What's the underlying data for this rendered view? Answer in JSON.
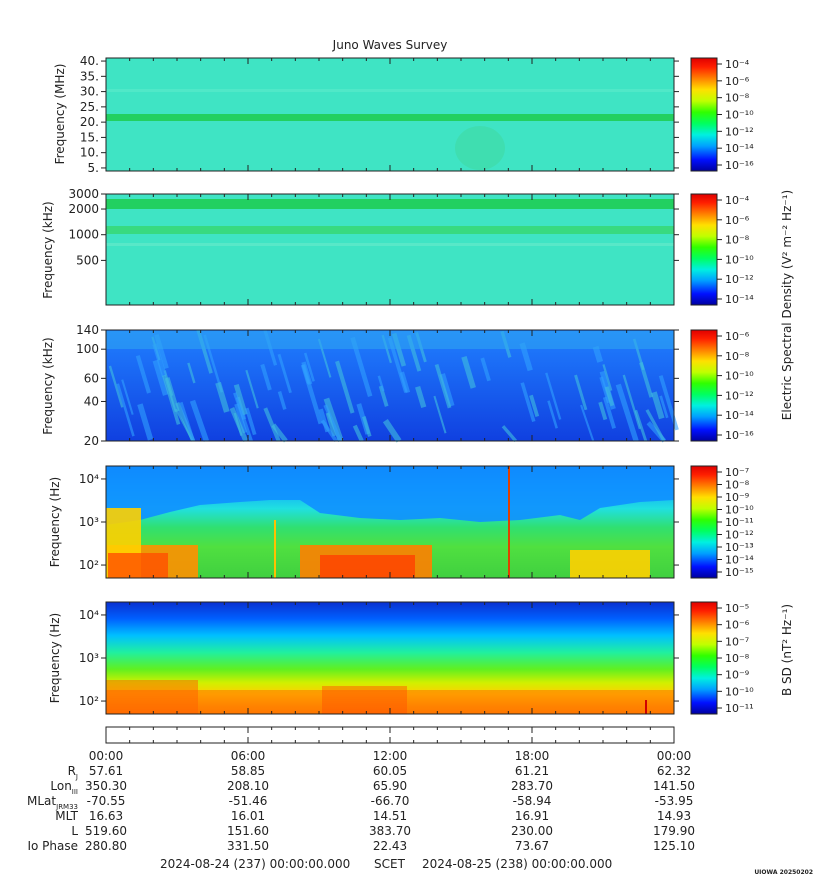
{
  "title": "Juno Waves Survey",
  "colors": {
    "background_teal": "#3fe0c0",
    "band_green": "#22d060",
    "low_blue": "#1050e8",
    "hot_red": "#ff3000",
    "warm_orange": "#ff9000",
    "axis": "#222222"
  },
  "colormap": [
    "#0000a0",
    "#0010ff",
    "#00a0ff",
    "#00f0e0",
    "#00ff60",
    "#30ff00",
    "#c0ff00",
    "#ffe000",
    "#ff8000",
    "#ff2000",
    "#e00000"
  ],
  "shared_colorbar_label": "Electric Spectral Density (V² m⁻² Hz⁻¹)",
  "bsd_colorbar_label": "B SD (nT² Hz⁻¹)",
  "chart_data": [
    {
      "type": "heatmap",
      "panel": "hfwbr-high",
      "ylabel": "Frequency (MHz)",
      "ylim": [
        4,
        41
      ],
      "yscale": "linear",
      "yticks": [
        5,
        10,
        15,
        20,
        25,
        30,
        35,
        40
      ],
      "ytick_labels": [
        "5.",
        "10.",
        "15.",
        "20.",
        "25.",
        "30.",
        "35.",
        "40."
      ],
      "features": [
        {
          "kind": "band",
          "y": 21,
          "note": "persistent emission line"
        }
      ],
      "colorbar": {
        "ticks": [
          "10⁻⁴",
          "10⁻⁶",
          "10⁻⁸",
          "10⁻¹⁰",
          "10⁻¹²",
          "10⁻¹⁴",
          "10⁻¹⁶"
        ]
      }
    },
    {
      "type": "heatmap",
      "panel": "hfwbr-low",
      "ylabel": "Frequency (kHz)",
      "ylim": [
        150,
        3000
      ],
      "yscale": "log",
      "yticks": [
        500,
        1000,
        2000,
        3000
      ],
      "ytick_labels": [
        "500",
        "1000",
        "2000",
        "3000"
      ],
      "features": [
        {
          "kind": "band",
          "y": 1100
        },
        {
          "kind": "band",
          "y": 2200
        }
      ],
      "colorbar": {
        "ticks": [
          "10⁻⁴",
          "10⁻⁶",
          "10⁻⁸",
          "10⁻¹⁰",
          "10⁻¹²",
          "10⁻¹⁴"
        ]
      }
    },
    {
      "type": "heatmap",
      "panel": "lfr-high",
      "ylabel": "Frequency (kHz)",
      "ylim": [
        20,
        140
      ],
      "yscale": "log",
      "yticks": [
        20,
        40,
        60,
        100,
        140
      ],
      "ytick_labels": [
        "20",
        "40",
        "60",
        "100",
        "140"
      ],
      "colorbar": {
        "ticks": [
          "10⁻⁶",
          "10⁻⁸",
          "10⁻¹⁰",
          "10⁻¹²",
          "10⁻¹⁴",
          "10⁻¹⁶"
        ]
      }
    },
    {
      "type": "heatmap",
      "panel": "lfr-low",
      "ylabel": "Frequency (Hz)",
      "ylim": [
        50,
        20000
      ],
      "yscale": "log",
      "yticks": [
        100,
        1000,
        10000
      ],
      "ytick_labels": [
        "10²",
        "10³",
        "10⁴"
      ],
      "colorbar": {
        "ticks": [
          "10⁻⁷",
          "10⁻⁸",
          "10⁻⁹",
          "10⁻¹⁰",
          "10⁻¹¹",
          "10⁻¹²",
          "10⁻¹³",
          "10⁻¹⁴",
          "10⁻¹⁵"
        ]
      }
    },
    {
      "type": "heatmap",
      "panel": "bsd",
      "ylabel": "Frequency (Hz)",
      "ylim": [
        50,
        20000
      ],
      "yscale": "log",
      "yticks": [
        100,
        1000,
        10000
      ],
      "ytick_labels": [
        "10²",
        "10³",
        "10⁴"
      ],
      "colorbar": {
        "ticks": [
          "10⁻⁵",
          "10⁻⁶",
          "10⁻⁷",
          "10⁻⁸",
          "10⁻⁹",
          "10⁻¹⁰",
          "10⁻¹¹"
        ]
      }
    }
  ],
  "time_axis": {
    "ticks": [
      "00:00",
      "06:00",
      "12:00",
      "18:00",
      "00:00"
    ],
    "rows": [
      {
        "label": "R",
        "sub": "J",
        "values": [
          "57.61",
          "58.85",
          "60.05",
          "61.21",
          "62.32"
        ]
      },
      {
        "label": "Lon",
        "sub": "III",
        "values": [
          "350.30",
          "208.10",
          "65.90",
          "283.70",
          "141.50"
        ]
      },
      {
        "label": "MLat",
        "sub": "JRM33",
        "values": [
          "-70.55",
          "-51.46",
          "-66.70",
          "-58.94",
          "-53.95"
        ]
      },
      {
        "label": "MLT",
        "sub": "",
        "values": [
          "16.63",
          "16.01",
          "14.51",
          "16.91",
          "14.93"
        ]
      },
      {
        "label": "L",
        "sub": "",
        "values": [
          "519.60",
          "151.60",
          "383.70",
          "230.00",
          "179.90"
        ]
      },
      {
        "label": "Io Phase",
        "sub": "",
        "values": [
          "280.80",
          "331.50",
          "22.43",
          "73.67",
          "125.10"
        ]
      }
    ],
    "start_label": "2024-08-24 (237) 00:00:00.000",
    "frame_label": "SCET",
    "end_label": "2024-08-25 (238) 00:00:00.000"
  },
  "footer_tag": "UIOWA 20250202"
}
